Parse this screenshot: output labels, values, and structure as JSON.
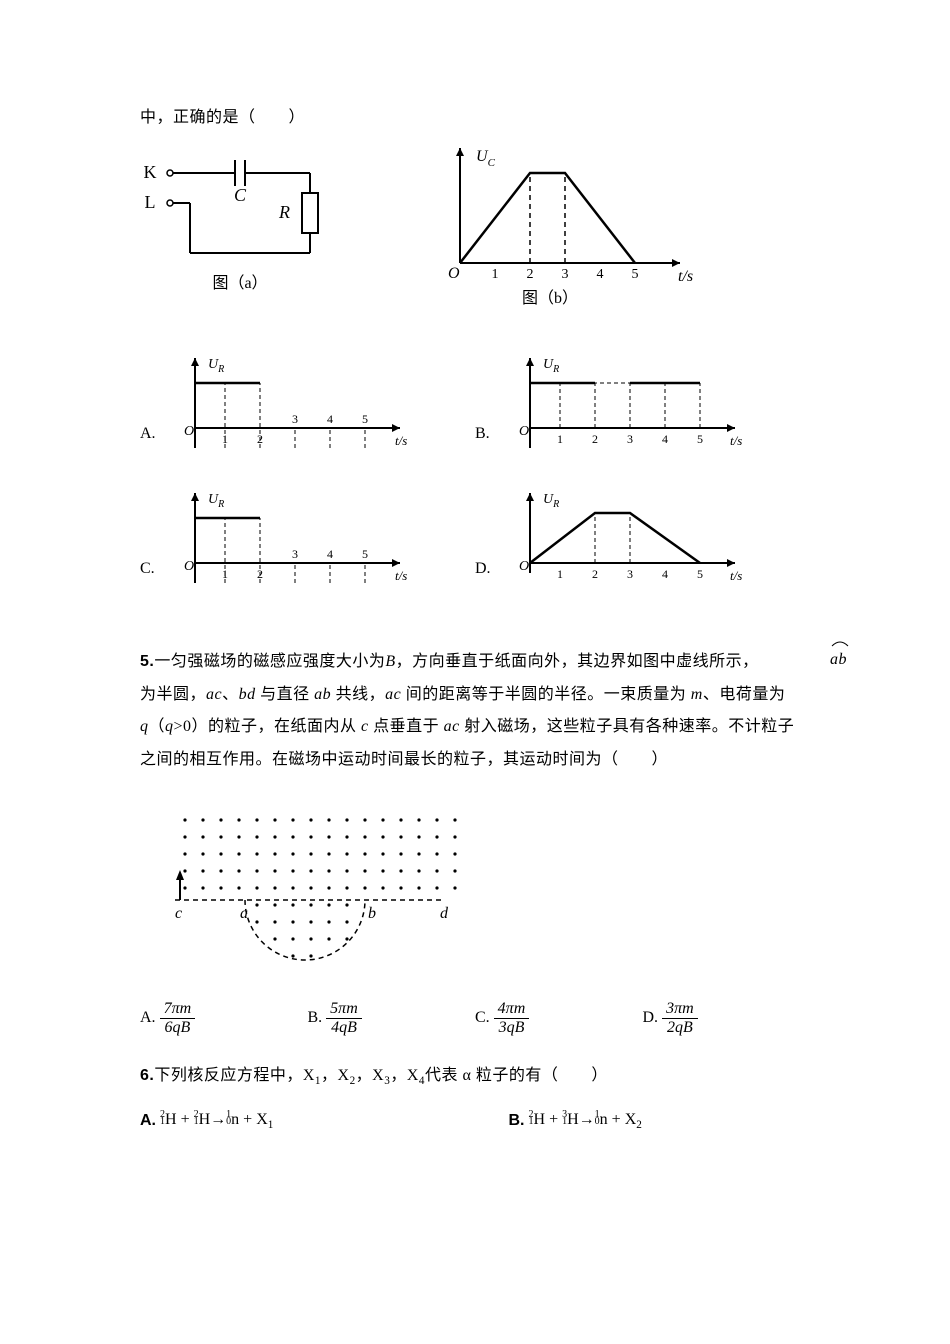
{
  "q4_remainder": "中，正确的是（　　）",
  "circuit": {
    "labels": {
      "K": "K",
      "L": "L",
      "C": "C",
      "R": "R"
    },
    "caption_a": "图（a）"
  },
  "ucgraph": {
    "ylabel": "U",
    "ysub": "C",
    "xlabel": "t/s",
    "xticks": [
      "1",
      "2",
      "3",
      "4",
      "5"
    ],
    "caption_b": "图（b）"
  },
  "urgraph": {
    "ylabel": "U",
    "ysub": "R",
    "xlabel": "t/s",
    "xticks": [
      "1",
      "2",
      "3",
      "4",
      "5"
    ]
  },
  "opt_labels": {
    "A": "A.",
    "B": "B.",
    "C": "C.",
    "D": "D."
  },
  "q5": {
    "num": "5.",
    "line1_a": "一匀强磁场的磁感应强度大小为",
    "line1_b": "B",
    "line1_c": "，方向垂直于纸面向外，其边界如图中虚线所示，",
    "ab_arc": "ab",
    "line2_a": "为半圆，",
    "line2_b": "ac",
    "line2_c": "、",
    "line2_d": "bd",
    "line2_e": " 与直径 ",
    "line2_f": "ab",
    "line2_g": " 共线，",
    "line2_h": "ac",
    "line2_i": " 间的距离等于半圆的半径。一束质量为 ",
    "line2_j": "m",
    "line2_k": "、电荷量为",
    "line3_a": "q",
    "line3_b": "（",
    "line3_c": "q",
    "line3_d": ">0）的粒子，在纸面内从 ",
    "line3_e": "c",
    "line3_f": " 点垂直于 ",
    "line3_g": "ac",
    "line3_h": " 射入磁场，这些粒子具有各种速率。不计粒子",
    "line4": "之间的相互作用。在磁场中运动时间最长的粒子，其运动时间为（　　）",
    "field_labels": {
      "c": "c",
      "a": "a",
      "b": "b",
      "d": "d"
    },
    "optA_num": "7πm",
    "optA_den": "6qB",
    "optB_num": "5πm",
    "optB_den": "4qB",
    "optC_num": "4πm",
    "optC_den": "3qB",
    "optD_num": "3πm",
    "optD_den": "2qB"
  },
  "q6": {
    "num": "6.",
    "text_a": "下列核反应方程中，X",
    "text_b": "，X",
    "text_c": "，X",
    "text_d": "，X",
    "text_e": "代表 α 粒子的有（　　）",
    "optA": "A.",
    "optB": "B.",
    "eqA_parts": {
      "pre1": "2",
      "pre2": "1",
      "H": "H",
      "plus": " + ",
      "pre3": "2",
      "pre4": "1",
      "arrow": "→",
      "n_sup": "1",
      "n_sub": "0",
      "n": "n",
      "X": "X",
      "x_sub": "1"
    },
    "eqB_parts": {
      "pre1": "2",
      "pre2": "1",
      "H": "H",
      "plus": " + ",
      "pre3": "3",
      "pre4": "1",
      "arrow": "→",
      "n_sup": "1",
      "n_sub": "0",
      "n": "n",
      "X": "X",
      "x_sub": "2"
    }
  }
}
